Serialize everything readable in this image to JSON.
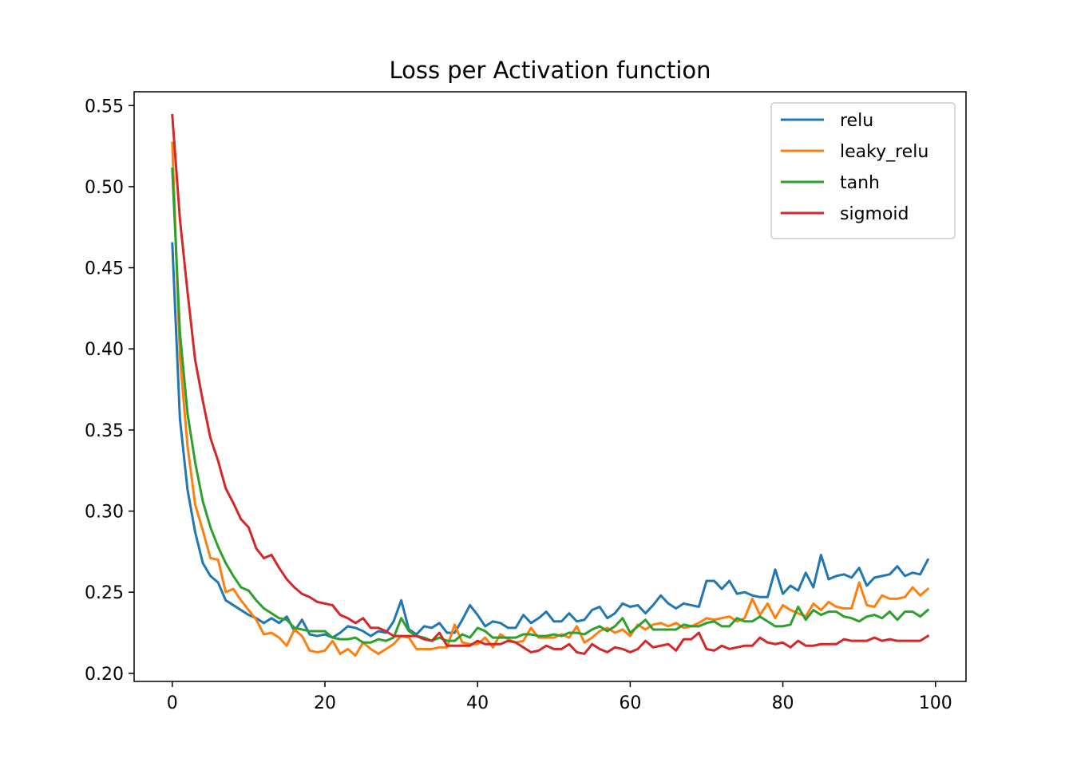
{
  "chart_data": {
    "type": "line",
    "title": "Loss per Activation function",
    "xlabel": "",
    "ylabel": "",
    "xlim": [
      -5,
      104
    ],
    "ylim": [
      0.195,
      0.5585
    ],
    "xticks": [
      0,
      20,
      40,
      60,
      80,
      100
    ],
    "yticks": [
      0.2,
      0.25,
      0.3,
      0.35,
      0.4,
      0.45,
      0.5,
      0.55
    ],
    "ytick_labels": [
      "0.20",
      "0.25",
      "0.30",
      "0.35",
      "0.40",
      "0.45",
      "0.50",
      "0.55"
    ],
    "xtick_labels": [
      "0",
      "20",
      "40",
      "60",
      "80",
      "100"
    ],
    "grid": false,
    "legend_position": "top-right",
    "series": [
      {
        "name": "relu",
        "color": "#1f77b4",
        "values": [
          0.465,
          0.357,
          0.313,
          0.287,
          0.268,
          0.26,
          0.256,
          0.245,
          0.242,
          0.239,
          0.236,
          0.234,
          0.231,
          0.234,
          0.231,
          0.235,
          0.226,
          0.233,
          0.224,
          0.223,
          0.224,
          0.222,
          0.225,
          0.229,
          0.228,
          0.226,
          0.223,
          0.226,
          0.225,
          0.232,
          0.245,
          0.227,
          0.224,
          0.229,
          0.228,
          0.231,
          0.225,
          0.225,
          0.233,
          0.242,
          0.236,
          0.229,
          0.232,
          0.231,
          0.228,
          0.228,
          0.236,
          0.231,
          0.234,
          0.238,
          0.232,
          0.232,
          0.237,
          0.232,
          0.233,
          0.239,
          0.241,
          0.234,
          0.237,
          0.243,
          0.241,
          0.242,
          0.237,
          0.242,
          0.248,
          0.243,
          0.24,
          0.243,
          0.242,
          0.241,
          0.257,
          0.257,
          0.252,
          0.257,
          0.249,
          0.25,
          0.248,
          0.247,
          0.247,
          0.264,
          0.249,
          0.254,
          0.251,
          0.262,
          0.253,
          0.273,
          0.258,
          0.26,
          0.261,
          0.259,
          0.265,
          0.254,
          0.259,
          0.26,
          0.261,
          0.266,
          0.26,
          0.262,
          0.261,
          0.27
        ]
      },
      {
        "name": "leaky_relu",
        "color": "#ff7f0e",
        "values": [
          0.527,
          0.395,
          0.34,
          0.304,
          0.288,
          0.271,
          0.27,
          0.25,
          0.252,
          0.245,
          0.239,
          0.233,
          0.224,
          0.225,
          0.222,
          0.217,
          0.227,
          0.223,
          0.214,
          0.213,
          0.214,
          0.22,
          0.212,
          0.215,
          0.211,
          0.219,
          0.215,
          0.212,
          0.215,
          0.218,
          0.223,
          0.222,
          0.215,
          0.215,
          0.215,
          0.216,
          0.216,
          0.23,
          0.219,
          0.218,
          0.218,
          0.222,
          0.216,
          0.224,
          0.221,
          0.219,
          0.22,
          0.228,
          0.222,
          0.222,
          0.222,
          0.224,
          0.222,
          0.229,
          0.219,
          0.222,
          0.226,
          0.228,
          0.225,
          0.227,
          0.223,
          0.23,
          0.227,
          0.23,
          0.231,
          0.229,
          0.231,
          0.228,
          0.229,
          0.231,
          0.234,
          0.233,
          0.234,
          0.235,
          0.232,
          0.234,
          0.246,
          0.236,
          0.243,
          0.234,
          0.242,
          0.239,
          0.237,
          0.235,
          0.243,
          0.239,
          0.244,
          0.241,
          0.24,
          0.24,
          0.256,
          0.242,
          0.241,
          0.248,
          0.246,
          0.246,
          0.247,
          0.253,
          0.248,
          0.252
        ]
      },
      {
        "name": "tanh",
        "color": "#2ca02c",
        "values": [
          0.511,
          0.41,
          0.36,
          0.33,
          0.306,
          0.29,
          0.278,
          0.268,
          0.26,
          0.253,
          0.251,
          0.245,
          0.24,
          0.237,
          0.234,
          0.233,
          0.228,
          0.227,
          0.226,
          0.226,
          0.226,
          0.222,
          0.221,
          0.221,
          0.222,
          0.219,
          0.219,
          0.221,
          0.22,
          0.222,
          0.234,
          0.226,
          0.223,
          0.222,
          0.22,
          0.222,
          0.22,
          0.22,
          0.224,
          0.222,
          0.228,
          0.226,
          0.222,
          0.222,
          0.222,
          0.222,
          0.224,
          0.224,
          0.223,
          0.223,
          0.224,
          0.223,
          0.225,
          0.225,
          0.224,
          0.227,
          0.229,
          0.226,
          0.229,
          0.234,
          0.225,
          0.229,
          0.233,
          0.227,
          0.227,
          0.227,
          0.227,
          0.23,
          0.229,
          0.229,
          0.231,
          0.232,
          0.229,
          0.229,
          0.234,
          0.232,
          0.232,
          0.235,
          0.232,
          0.229,
          0.229,
          0.23,
          0.241,
          0.233,
          0.239,
          0.236,
          0.238,
          0.238,
          0.235,
          0.234,
          0.232,
          0.235,
          0.236,
          0.234,
          0.238,
          0.233,
          0.238,
          0.238,
          0.235,
          0.239
        ]
      },
      {
        "name": "sigmoid",
        "color": "#d62728",
        "values": [
          0.544,
          0.48,
          0.435,
          0.393,
          0.368,
          0.345,
          0.331,
          0.314,
          0.305,
          0.295,
          0.29,
          0.277,
          0.271,
          0.273,
          0.265,
          0.258,
          0.253,
          0.249,
          0.247,
          0.244,
          0.243,
          0.242,
          0.236,
          0.234,
          0.231,
          0.234,
          0.228,
          0.228,
          0.226,
          0.223,
          0.223,
          0.223,
          0.223,
          0.221,
          0.22,
          0.225,
          0.217,
          0.217,
          0.217,
          0.217,
          0.22,
          0.218,
          0.218,
          0.218,
          0.22,
          0.219,
          0.216,
          0.213,
          0.214,
          0.217,
          0.215,
          0.215,
          0.218,
          0.213,
          0.212,
          0.218,
          0.215,
          0.213,
          0.216,
          0.215,
          0.213,
          0.215,
          0.22,
          0.216,
          0.217,
          0.218,
          0.214,
          0.221,
          0.221,
          0.225,
          0.215,
          0.214,
          0.217,
          0.215,
          0.216,
          0.217,
          0.217,
          0.222,
          0.219,
          0.218,
          0.219,
          0.216,
          0.22,
          0.217,
          0.217,
          0.218,
          0.218,
          0.218,
          0.221,
          0.22,
          0.22,
          0.22,
          0.222,
          0.22,
          0.221,
          0.22,
          0.22,
          0.22,
          0.22,
          0.223
        ]
      }
    ]
  }
}
